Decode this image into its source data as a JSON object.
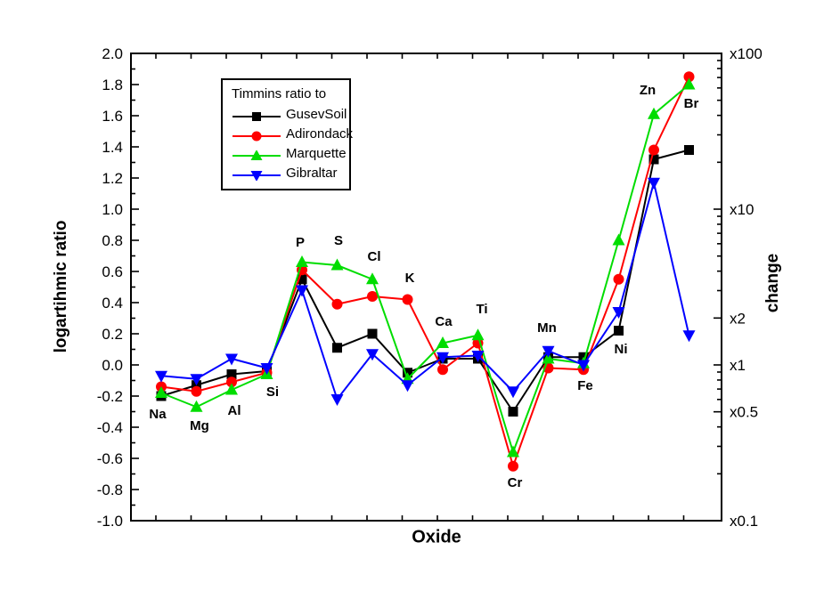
{
  "figure": {
    "left_axis_title": "logartihmic ratio",
    "bottom_axis_title": "Oxide",
    "right_axis_title": "change"
  },
  "legend": {
    "title": "Timmins ratio to",
    "entries": [
      {
        "label": "GusevSoil",
        "color": "#000000",
        "marker": "square"
      },
      {
        "label": "Adirondack",
        "color": "#FF0000",
        "marker": "circle"
      },
      {
        "label": "Marquette",
        "color": "#00DD00",
        "marker": "triangle-up"
      },
      {
        "label": "Gibraltar",
        "color": "#0000FF",
        "marker": "triangle-down"
      }
    ]
  },
  "chart_data": {
    "type": "line",
    "title": "",
    "xlabel": "Oxide",
    "ylabel_left": "logartihmic ratio",
    "ylabel_right": "change",
    "categories": [
      "Na",
      "Mg",
      "Al",
      "Si",
      "P",
      "S",
      "Cl",
      "K",
      "Ca",
      "Ti",
      "Cr",
      "Mn",
      "Fe",
      "Ni",
      "Zn",
      "Br"
    ],
    "series": [
      {
        "name": "GusevSoil",
        "color": "#000000",
        "marker": "square",
        "values": [
          -0.2,
          -0.13,
          -0.06,
          -0.04,
          0.55,
          0.11,
          0.2,
          -0.05,
          0.04,
          0.04,
          -0.3,
          0.05,
          0.05,
          0.22,
          1.32,
          1.38
        ]
      },
      {
        "name": "Adirondack",
        "color": "#FF0000",
        "marker": "circle",
        "values": [
          -0.14,
          -0.17,
          -0.11,
          -0.05,
          0.61,
          0.39,
          0.44,
          0.42,
          -0.03,
          0.14,
          -0.65,
          -0.02,
          -0.03,
          0.55,
          1.38,
          1.85
        ]
      },
      {
        "name": "Marquette",
        "color": "#00DD00",
        "marker": "triangle-up",
        "values": [
          -0.18,
          -0.27,
          -0.16,
          -0.06,
          0.66,
          0.64,
          0.55,
          -0.09,
          0.14,
          0.19,
          -0.56,
          0.04,
          0.01,
          0.8,
          1.61,
          1.8
        ]
      },
      {
        "name": "Gibraltar",
        "color": "#0000FF",
        "marker": "triangle-down",
        "values": [
          -0.07,
          -0.09,
          0.04,
          -0.02,
          0.48,
          -0.22,
          0.07,
          -0.13,
          0.05,
          0.06,
          -0.17,
          0.09,
          0.0,
          0.34,
          1.17,
          0.19
        ]
      }
    ],
    "ylim": [
      -1.0,
      2.0
    ],
    "y_major_step": 0.2,
    "y_minor_step": 0.1,
    "grid": false,
    "legend_position": "top-left-inside",
    "right_axis": {
      "scale": "log10 multiplier (change factor)",
      "labels": [
        {
          "text": "x100",
          "log": 2.0
        },
        {
          "text": "x10",
          "log": 1.0
        },
        {
          "text": "x2",
          "log": 0.30103
        },
        {
          "text": "x1",
          "log": 0.0
        },
        {
          "text": "x0.5",
          "log": -0.30103
        },
        {
          "text": "x0.1",
          "log": -1.0
        }
      ]
    }
  }
}
